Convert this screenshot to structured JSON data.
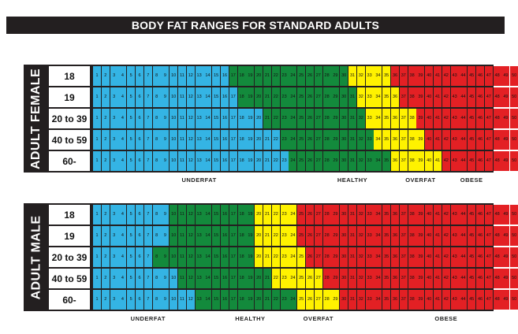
{
  "title": "BODY FAT RANGES FOR STANDARD ADULTS",
  "colors": {
    "underfat": "#34b4e4",
    "healthy": "#138a3c",
    "overfat": "#fff200",
    "obese": "#e32024"
  },
  "chart_data": {
    "type": "heatmap",
    "title": "BODY FAT RANGES FOR STANDARD ADULTS",
    "cell_values": [
      1,
      50
    ],
    "categories": [
      "underfat",
      "healthy",
      "overfat",
      "obese"
    ],
    "panels": [
      {
        "group": "ADULT FEMALE",
        "rows": [
          {
            "age": "18",
            "healthy_from": 17,
            "overfat_from": 31,
            "obese_from": 36
          },
          {
            "age": "19",
            "healthy_from": 18,
            "overfat_from": 32,
            "obese_from": 37
          },
          {
            "age": "20 to 39",
            "healthy_from": 21,
            "overfat_from": 33,
            "obese_from": 39
          },
          {
            "age": "40 to 59",
            "healthy_from": 23,
            "overfat_from": 34,
            "obese_from": 40
          },
          {
            "age": "60-",
            "healthy_from": 24,
            "overfat_from": 36,
            "obese_from": 42
          }
        ],
        "zone_labels": [
          {
            "text": "UNDERFAT",
            "value": 13
          },
          {
            "text": "HEALTHY",
            "value": 31
          },
          {
            "text": "OVERFAT",
            "value": 39
          },
          {
            "text": "OBESE",
            "value": 45
          }
        ]
      },
      {
        "group": "ADULT MALE",
        "rows": [
          {
            "age": "18",
            "healthy_from": 10,
            "overfat_from": 20,
            "obese_from": 25
          },
          {
            "age": "19",
            "healthy_from": 10,
            "overfat_from": 20,
            "obese_from": 25
          },
          {
            "age": "20 to 39",
            "healthy_from": 8,
            "overfat_from": 20,
            "obese_from": 26
          },
          {
            "age": "40 to 59",
            "healthy_from": 11,
            "overfat_from": 22,
            "obese_from": 28
          },
          {
            "age": "60-",
            "healthy_from": 13,
            "overfat_from": 25,
            "obese_from": 30
          }
        ],
        "zone_labels": [
          {
            "text": "UNDERFAT",
            "value": 7
          },
          {
            "text": "HEALTHY",
            "value": 19
          },
          {
            "text": "OVERFAT",
            "value": 27
          },
          {
            "text": "OBESE",
            "value": 42
          }
        ]
      }
    ]
  }
}
